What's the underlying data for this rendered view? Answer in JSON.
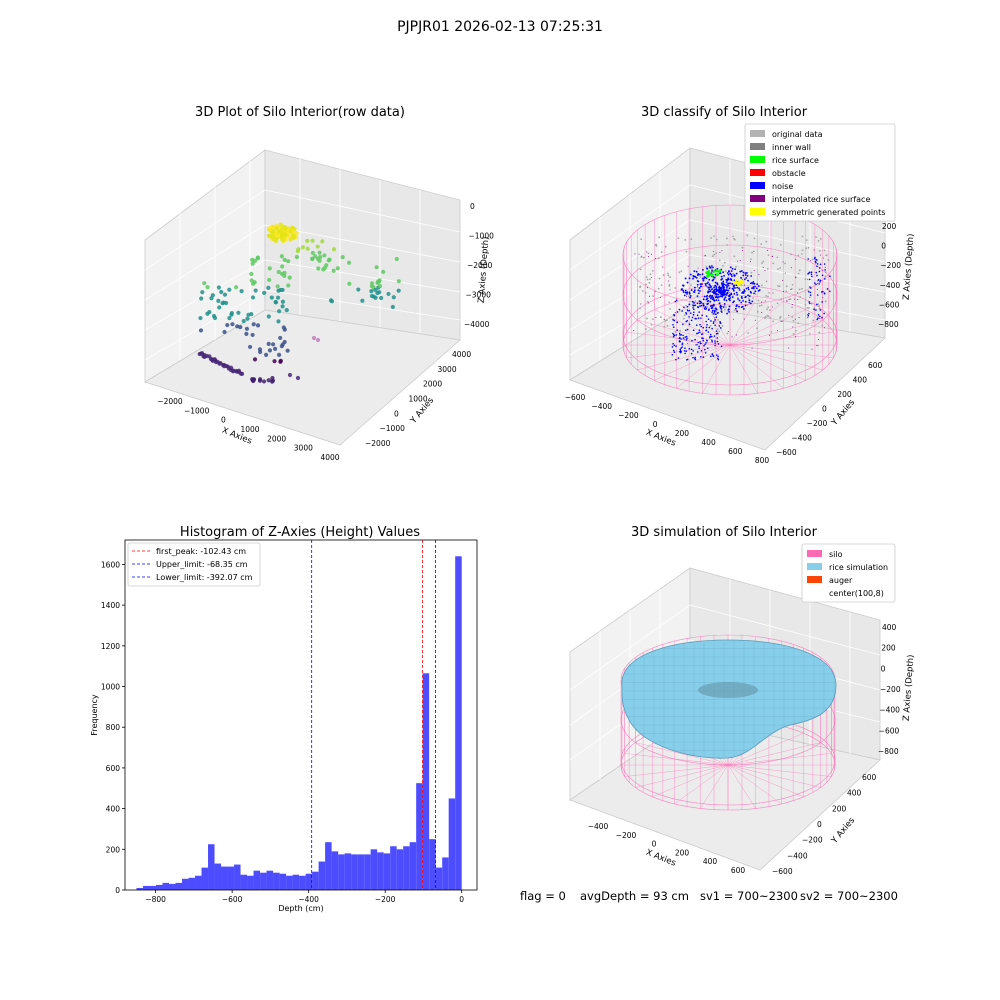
{
  "figure": {
    "suptitle": "PJPJR01 2026-02-13 07:25:31",
    "status": {
      "flag": "flag = 0",
      "avg_depth": "avgDepth = 93 cm",
      "sv1": "sv1 = 700~2300",
      "sv2": "sv2 = 700~2300"
    }
  },
  "chart_data": [
    {
      "type": "scatter",
      "projection": "3d",
      "title": "3D Plot of Silo Interior(row data)",
      "xlabel": "X Axies",
      "ylabel": "Y Axies",
      "zlabel": "Z Axies (Depth)",
      "x_ticks": [
        "−2000",
        "−1000",
        "0",
        "1000",
        "2000",
        "3000",
        "4000"
      ],
      "y_ticks": [
        "−2000",
        "−1000",
        "0",
        "1000",
        "2000",
        "3000",
        "4000"
      ],
      "z_ticks": [
        "−4000",
        "−3000",
        "−2000",
        "−1000",
        "0"
      ],
      "colormap": "viridis"
    },
    {
      "type": "scatter",
      "projection": "3d",
      "title": "3D classify of Silo Interior",
      "xlabel": "X Axies",
      "ylabel": "Y Axies",
      "zlabel": "Z Axies (Depth)",
      "x_ticks": [
        "−600",
        "−400",
        "−200",
        "0",
        "200",
        "400",
        "600",
        "800"
      ],
      "y_ticks": [
        "−600",
        "−400",
        "−200",
        "0",
        "200",
        "400",
        "600"
      ],
      "z_ticks": [
        "−800",
        "−600",
        "−400",
        "−200",
        "0",
        "200"
      ],
      "legend": {
        "position": "top-right",
        "entries": [
          {
            "label": "original data",
            "color": "#b3b3b3"
          },
          {
            "label": "inner wall",
            "color": "#808080"
          },
          {
            "label": "rice surface",
            "color": "#00ff00"
          },
          {
            "label": "obstacle",
            "color": "#ff0000"
          },
          {
            "label": "noise",
            "color": "#0000ff"
          },
          {
            "label": "interpolated rice surface",
            "color": "#800080"
          },
          {
            "label": "symmetric generated points",
            "color": "#ffff00"
          }
        ]
      }
    },
    {
      "type": "bar",
      "title": "Histogram of Z-Axies (Height) Values",
      "xlabel": "Depth (cm)",
      "ylabel": "Frequency",
      "xlim": [
        -880,
        40
      ],
      "ylim": [
        0,
        1720
      ],
      "x_ticks": [
        {
          "value": -800,
          "label": "−800"
        },
        {
          "value": -600,
          "label": "−600"
        },
        {
          "value": -400,
          "label": "−400"
        },
        {
          "value": -200,
          "label": "−200"
        },
        {
          "value": 0,
          "label": "0"
        }
      ],
      "y_ticks": [
        0,
        200,
        400,
        600,
        800,
        1000,
        1200,
        1400,
        1600
      ],
      "bar_color": "#4d4dff",
      "bin_start": -850,
      "bin_width": 17,
      "values": [
        10,
        20,
        20,
        25,
        35,
        30,
        35,
        55,
        60,
        70,
        110,
        225,
        130,
        115,
        115,
        125,
        75,
        70,
        95,
        85,
        95,
        85,
        80,
        70,
        75,
        70,
        80,
        90,
        140,
        235,
        190,
        175,
        180,
        175,
        175,
        175,
        200,
        185,
        180,
        215,
        200,
        215,
        235,
        525,
        1065,
        250,
        110,
        160,
        450,
        1640
      ],
      "vlines": [
        {
          "value": -102.43,
          "label": "first_peak: -102.43 cm",
          "color": "#ff0000"
        },
        {
          "value": -68.35,
          "label": "Upper_limit: -68.35 cm",
          "color": "#0000ff"
        },
        {
          "value": -392.07,
          "label": "Lower_limit: -392.07 cm",
          "color": "#0000ff"
        }
      ],
      "legend": {
        "position": "top-left"
      }
    },
    {
      "type": "surface",
      "projection": "3d",
      "title": "3D simulation of Silo Interior",
      "xlabel": "X Axies",
      "ylabel": "Y Axies",
      "zlabel": "Z Axies (Depth)",
      "x_ticks": [
        "−400",
        "−200",
        "0",
        "200",
        "400",
        "600"
      ],
      "y_ticks": [
        "−600",
        "−400",
        "−200",
        "0",
        "200",
        "400",
        "600"
      ],
      "z_ticks": [
        "−800",
        "−600",
        "−400",
        "−200",
        "0",
        "200",
        "400"
      ],
      "legend": {
        "position": "top-right",
        "entries": [
          {
            "label": "silo",
            "color": "#ff69b4"
          },
          {
            "label": "rice simulation",
            "color": "#87ceeb"
          },
          {
            "label": "auger",
            "color": "#ff4500"
          },
          {
            "label": "center(100,8)",
            "color": ""
          }
        ]
      }
    }
  ]
}
